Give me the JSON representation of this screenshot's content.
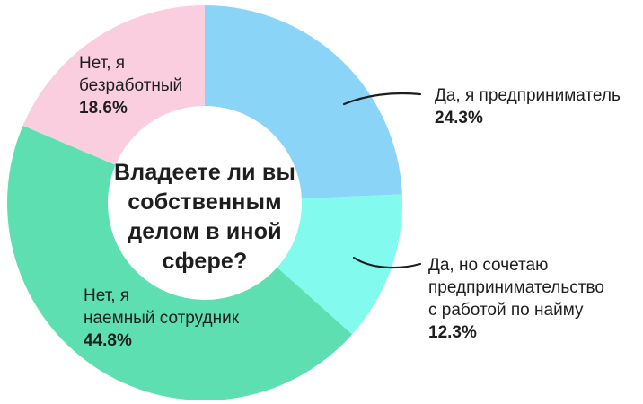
{
  "chart_data": {
    "type": "pie",
    "donut": true,
    "title": "Владеете ли вы собственным делом в иной сфере?",
    "title_lines": [
      "Владеете ли вы",
      "собственным",
      "делом в иной",
      "сфере?"
    ],
    "start_angle_deg": 0,
    "direction": "clockwise",
    "unit": "%",
    "legend": "none",
    "labels_placement": "on-segment-and-callout",
    "text_color": "#1E1E1E",
    "background": "#FFFFFF",
    "callout_color": "#1E1E1E",
    "segments": [
      {
        "name": "Да, я предприниматель",
        "value": 24.3,
        "value_label": "24.3%",
        "color": "#8AD4F7",
        "label_lines": [
          "Да, я предприниматель"
        ]
      },
      {
        "name": "Да, но сочетаю предпринимательство с работой по найму",
        "value": 12.3,
        "value_label": "12.3%",
        "color": "#82FBEE",
        "label_lines": [
          "Да, но сочетаю",
          "предпринимательство",
          "с работой по найму"
        ]
      },
      {
        "name": "Нет, я наемный сотрудник",
        "value": 44.8,
        "value_label": "44.8%",
        "color": "#5EDFB2",
        "label_lines": [
          "Нет, я",
          "наемный сотрудник"
        ]
      },
      {
        "name": "Нет, я безработный",
        "value": 18.6,
        "value_label": "18.6%",
        "color": "#FBCEDF",
        "label_lines": [
          "Нет, я",
          "безработный"
        ]
      }
    ]
  }
}
